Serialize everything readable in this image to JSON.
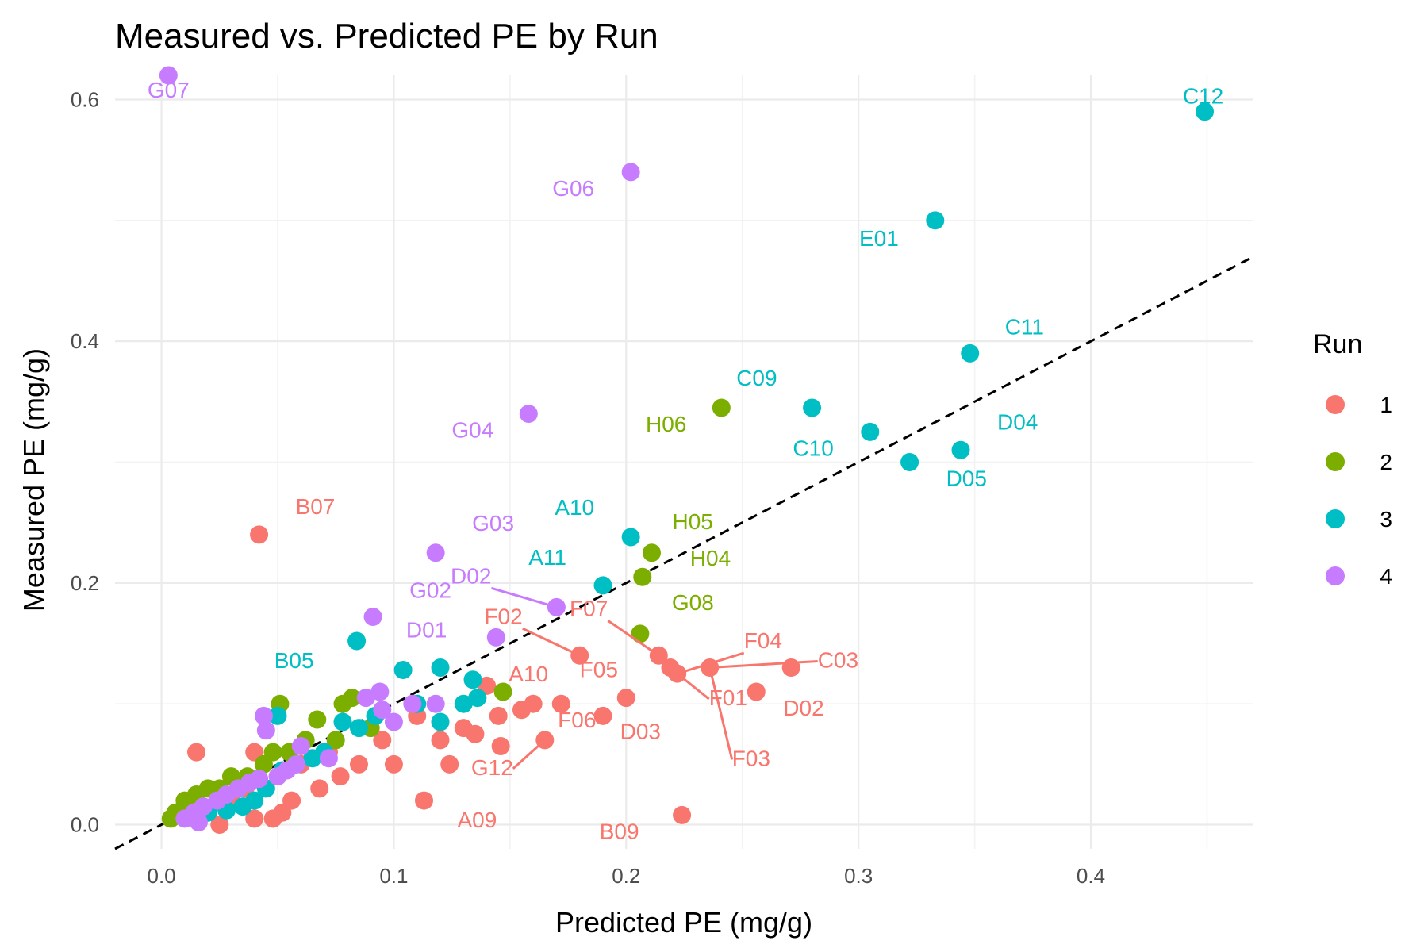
{
  "chart_data": {
    "type": "scatter",
    "title": "Measured vs. Predicted PE by Run",
    "xlabel": "Predicted PE (mg/g)",
    "ylabel": "Measured PE (mg/g)",
    "xlim": [
      -0.02,
      0.47
    ],
    "ylim": [
      -0.02,
      0.62
    ],
    "x_ticks": [
      0.0,
      0.1,
      0.2,
      0.3,
      0.4
    ],
    "x_tick_labels": [
      "0.0",
      "0.1",
      "0.2",
      "0.3",
      "0.4"
    ],
    "y_ticks": [
      0.0,
      0.2,
      0.4,
      0.6
    ],
    "y_tick_labels": [
      "0.0",
      "0.2",
      "0.4",
      "0.6"
    ],
    "grid": true,
    "legend": {
      "title": "Run",
      "position": "right",
      "items": [
        {
          "name": "1",
          "color": "#F8766D"
        },
        {
          "name": "2",
          "color": "#7CAE00"
        },
        {
          "name": "3",
          "color": "#00BFC4"
        },
        {
          "name": "4",
          "color": "#C77CFF"
        }
      ]
    },
    "reference_line": {
      "type": "identity",
      "style": "dashed",
      "color": "#000000"
    },
    "series": [
      {
        "name": "1",
        "color": "#F8766D",
        "points": [
          [
            0.042,
            0.24
          ],
          [
            0.271,
            0.13
          ],
          [
            0.256,
            0.11
          ],
          [
            0.2,
            0.105
          ],
          [
            0.19,
            0.09
          ],
          [
            0.219,
            0.13
          ],
          [
            0.236,
            0.13
          ],
          [
            0.222,
            0.125
          ],
          [
            0.214,
            0.14
          ],
          [
            0.18,
            0.14
          ],
          [
            0.165,
            0.07
          ],
          [
            0.16,
            0.1
          ],
          [
            0.145,
            0.09
          ],
          [
            0.14,
            0.115
          ],
          [
            0.13,
            0.08
          ],
          [
            0.124,
            0.05
          ],
          [
            0.113,
            0.02
          ],
          [
            0.12,
            0.07
          ],
          [
            0.11,
            0.09
          ],
          [
            0.1,
            0.05
          ],
          [
            0.095,
            0.07
          ],
          [
            0.085,
            0.05
          ],
          [
            0.077,
            0.04
          ],
          [
            0.072,
            0.06
          ],
          [
            0.068,
            0.03
          ],
          [
            0.06,
            0.05
          ],
          [
            0.056,
            0.02
          ],
          [
            0.052,
            0.01
          ],
          [
            0.048,
            0.005
          ],
          [
            0.04,
            0.005
          ],
          [
            0.036,
            0.03
          ],
          [
            0.03,
            0.02
          ],
          [
            0.025,
            0.0
          ],
          [
            0.015,
            0.06
          ],
          [
            0.04,
            0.06
          ],
          [
            0.224,
            0.008
          ],
          [
            0.135,
            0.075
          ],
          [
            0.155,
            0.095
          ],
          [
            0.172,
            0.1
          ],
          [
            0.146,
            0.065
          ]
        ]
      },
      {
        "name": "2",
        "color": "#7CAE00",
        "points": [
          [
            0.241,
            0.345
          ],
          [
            0.211,
            0.225
          ],
          [
            0.207,
            0.205
          ],
          [
            0.206,
            0.158
          ],
          [
            0.147,
            0.11
          ],
          [
            0.051,
            0.1
          ],
          [
            0.067,
            0.087
          ],
          [
            0.078,
            0.1
          ],
          [
            0.082,
            0.105
          ],
          [
            0.075,
            0.07
          ],
          [
            0.062,
            0.07
          ],
          [
            0.055,
            0.06
          ],
          [
            0.048,
            0.06
          ],
          [
            0.044,
            0.05
          ],
          [
            0.037,
            0.04
          ],
          [
            0.03,
            0.04
          ],
          [
            0.025,
            0.03
          ],
          [
            0.02,
            0.03
          ],
          [
            0.015,
            0.025
          ],
          [
            0.01,
            0.02
          ],
          [
            0.006,
            0.01
          ],
          [
            0.004,
            0.005
          ],
          [
            0.09,
            0.08
          ]
        ]
      },
      {
        "name": "3",
        "color": "#00BFC4",
        "points": [
          [
            0.449,
            0.59
          ],
          [
            0.333,
            0.5
          ],
          [
            0.348,
            0.39
          ],
          [
            0.28,
            0.345
          ],
          [
            0.305,
            0.325
          ],
          [
            0.322,
            0.3
          ],
          [
            0.344,
            0.31
          ],
          [
            0.202,
            0.238
          ],
          [
            0.19,
            0.198
          ],
          [
            0.084,
            0.152
          ],
          [
            0.104,
            0.128
          ],
          [
            0.12,
            0.13
          ],
          [
            0.134,
            0.12
          ],
          [
            0.136,
            0.105
          ],
          [
            0.13,
            0.1
          ],
          [
            0.12,
            0.085
          ],
          [
            0.11,
            0.1
          ],
          [
            0.092,
            0.09
          ],
          [
            0.085,
            0.08
          ],
          [
            0.078,
            0.085
          ],
          [
            0.07,
            0.06
          ],
          [
            0.065,
            0.055
          ],
          [
            0.058,
            0.05
          ],
          [
            0.052,
            0.045
          ],
          [
            0.05,
            0.09
          ],
          [
            0.045,
            0.03
          ],
          [
            0.04,
            0.02
          ],
          [
            0.035,
            0.015
          ],
          [
            0.028,
            0.012
          ],
          [
            0.02,
            0.01
          ]
        ]
      },
      {
        "name": "4",
        "color": "#C77CFF",
        "points": [
          [
            0.003,
            0.62
          ],
          [
            0.202,
            0.54
          ],
          [
            0.158,
            0.34
          ],
          [
            0.118,
            0.225
          ],
          [
            0.091,
            0.172
          ],
          [
            0.17,
            0.18
          ],
          [
            0.144,
            0.155
          ],
          [
            0.118,
            0.1
          ],
          [
            0.108,
            0.1
          ],
          [
            0.094,
            0.11
          ],
          [
            0.088,
            0.105
          ],
          [
            0.044,
            0.09
          ],
          [
            0.045,
            0.078
          ],
          [
            0.06,
            0.065
          ],
          [
            0.072,
            0.055
          ],
          [
            0.058,
            0.05
          ],
          [
            0.054,
            0.045
          ],
          [
            0.05,
            0.04
          ],
          [
            0.042,
            0.038
          ],
          [
            0.038,
            0.035
          ],
          [
            0.033,
            0.03
          ],
          [
            0.028,
            0.025
          ],
          [
            0.024,
            0.02
          ],
          [
            0.018,
            0.015
          ],
          [
            0.014,
            0.01
          ],
          [
            0.01,
            0.005
          ],
          [
            0.016,
            0.002
          ],
          [
            0.1,
            0.085
          ],
          [
            0.095,
            0.095
          ]
        ]
      }
    ],
    "annotations": [
      {
        "text": "G07",
        "x": 0.003,
        "y": 0.62,
        "color": "#C77CFF",
        "dx": 0,
        "dy": 28,
        "leader": false
      },
      {
        "text": "C12",
        "x": 0.449,
        "y": 0.59,
        "color": "#00BFC4",
        "dx": -2,
        "dy": -10,
        "leader": false
      },
      {
        "text": "G06",
        "x": 0.202,
        "y": 0.54,
        "color": "#C77CFF",
        "dx": -46,
        "dy": 30,
        "leader": false
      },
      {
        "text": "E01",
        "x": 0.333,
        "y": 0.5,
        "color": "#00BFC4",
        "dx": -46,
        "dy": 32,
        "leader": false
      },
      {
        "text": "C11",
        "x": 0.348,
        "y": 0.39,
        "color": "#00BFC4",
        "dx": 44,
        "dy": -24,
        "leader": false
      },
      {
        "text": "C09",
        "x": 0.28,
        "y": 0.345,
        "color": "#00BFC4",
        "dx": -44,
        "dy": -28,
        "leader": false
      },
      {
        "text": "H06",
        "x": 0.241,
        "y": 0.345,
        "color": "#7CAE00",
        "dx": -44,
        "dy": 30,
        "leader": false
      },
      {
        "text": "G04",
        "x": 0.158,
        "y": 0.34,
        "color": "#C77CFF",
        "dx": -44,
        "dy": 30,
        "leader": false
      },
      {
        "text": "D04",
        "x": 0.344,
        "y": 0.31,
        "color": "#00BFC4",
        "dx": 46,
        "dy": -26,
        "leader": false
      },
      {
        "text": "C10",
        "x": 0.305,
        "y": 0.325,
        "color": "#00BFC4",
        "dx": -46,
        "dy": 30,
        "leader": false
      },
      {
        "text": "D05",
        "x": 0.322,
        "y": 0.3,
        "color": "#00BFC4",
        "dx": 46,
        "dy": 30,
        "leader": false
      },
      {
        "text": "B07",
        "x": 0.042,
        "y": 0.24,
        "color": "#F8766D",
        "dx": 46,
        "dy": -26,
        "leader": false
      },
      {
        "text": "A10",
        "x": 0.202,
        "y": 0.238,
        "color": "#00BFC4",
        "dx": -46,
        "dy": -28,
        "leader": false
      },
      {
        "text": "H05",
        "x": 0.211,
        "y": 0.225,
        "color": "#7CAE00",
        "dx": 26,
        "dy": -30,
        "leader": false
      },
      {
        "text": "G03",
        "x": 0.118,
        "y": 0.225,
        "color": "#C77CFF",
        "dx": 46,
        "dy": -28,
        "leader": false
      },
      {
        "text": "A11",
        "x": 0.19,
        "y": 0.198,
        "color": "#00BFC4",
        "dx": -46,
        "dy": -26,
        "leader": false
      },
      {
        "text": "H04",
        "x": 0.207,
        "y": 0.205,
        "color": "#7CAE00",
        "dx": 60,
        "dy": -14,
        "leader": false
      },
      {
        "text": "D02",
        "x": 0.17,
        "y": 0.18,
        "color": "#C77CFF",
        "dx": -82,
        "dy": -30,
        "leader": true
      },
      {
        "text": "G02",
        "x": 0.091,
        "y": 0.172,
        "color": "#C77CFF",
        "dx": 46,
        "dy": -24,
        "leader": false
      },
      {
        "text": "G08",
        "x": 0.206,
        "y": 0.158,
        "color": "#7CAE00",
        "dx": 40,
        "dy": -30,
        "leader": false
      },
      {
        "text": "F02",
        "x": 0.18,
        "y": 0.14,
        "color": "#F8766D",
        "dx": -72,
        "dy": -40,
        "leader": true
      },
      {
        "text": "F07",
        "x": 0.214,
        "y": 0.14,
        "color": "#F8766D",
        "dx": -64,
        "dy": -50,
        "leader": true
      },
      {
        "text": "F04",
        "x": 0.222,
        "y": 0.125,
        "color": "#F8766D",
        "dx": 84,
        "dy": -32,
        "leader": true
      },
      {
        "text": "D01",
        "x": 0.144,
        "y": 0.155,
        "color": "#C77CFF",
        "dx": -62,
        "dy": 0,
        "leader": false
      },
      {
        "text": "B05",
        "x": 0.084,
        "y": 0.152,
        "color": "#00BFC4",
        "dx": -54,
        "dy": 34,
        "leader": false
      },
      {
        "text": "C03",
        "x": 0.236,
        "y": 0.13,
        "color": "#F8766D",
        "dx": 136,
        "dy": 0,
        "leader": true
      },
      {
        "text": "F05",
        "x": 0.219,
        "y": 0.13,
        "color": "#F8766D",
        "dx": -66,
        "dy": 12,
        "leader": false
      },
      {
        "text": "A10",
        "x": 0.16,
        "y": 0.1,
        "color": "#F8766D",
        "dx": -6,
        "dy": -28,
        "leader": false
      },
      {
        "text": "F01",
        "x": 0.222,
        "y": 0.125,
        "color": "#F8766D",
        "dx": 40,
        "dy": 40,
        "leader": true
      },
      {
        "text": "D02",
        "x": 0.256,
        "y": 0.11,
        "color": "#F8766D",
        "dx": 34,
        "dy": 30,
        "leader": false
      },
      {
        "text": "D03",
        "x": 0.2,
        "y": 0.105,
        "color": "#F8766D",
        "dx": 18,
        "dy": 52,
        "leader": false
      },
      {
        "text": "F06",
        "x": 0.172,
        "y": 0.1,
        "color": "#F8766D",
        "dx": 20,
        "dy": 30,
        "leader": false
      },
      {
        "text": "F03",
        "x": 0.236,
        "y": 0.13,
        "color": "#F8766D",
        "dx": 28,
        "dy": 124,
        "leader": true
      },
      {
        "text": "G12",
        "x": 0.165,
        "y": 0.07,
        "color": "#F8766D",
        "dx": -40,
        "dy": 44,
        "leader": true
      },
      {
        "text": "A09",
        "x": 0.113,
        "y": 0.02,
        "color": "#F8766D",
        "dx": 42,
        "dy": 34,
        "leader": false
      },
      {
        "text": "B09",
        "x": 0.224,
        "y": 0.008,
        "color": "#F8766D",
        "dx": -54,
        "dy": 30,
        "leader": false
      }
    ]
  }
}
